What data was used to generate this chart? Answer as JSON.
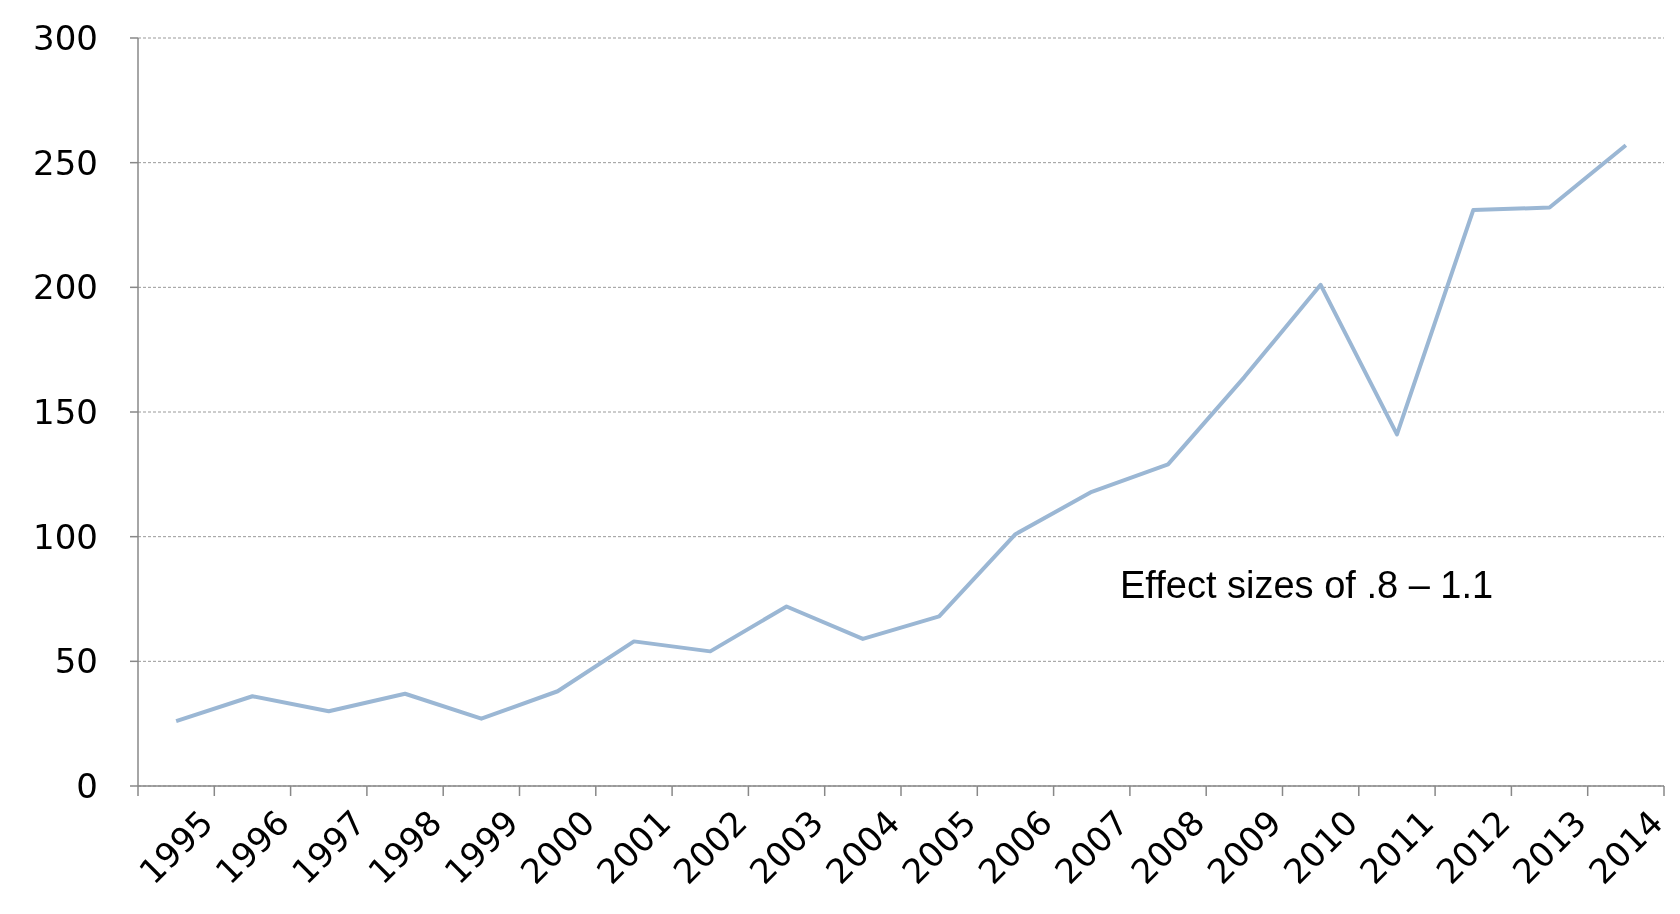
{
  "chart_data": {
    "type": "line",
    "categories": [
      "1995",
      "1996",
      "1997",
      "1998",
      "1999",
      "2000",
      "2001",
      "2002",
      "2003",
      "2004",
      "2005",
      "2006",
      "2007",
      "2008",
      "2009",
      "2010",
      "2011",
      "2012",
      "2013",
      "2014"
    ],
    "series": [
      {
        "color": "#9bb7d4",
        "values": [
          26,
          36,
          30,
          37,
          27,
          38,
          58,
          54,
          72,
          59,
          68,
          101,
          118,
          129,
          164,
          201,
          141,
          231,
          232,
          257
        ]
      }
    ],
    "ylim": [
      0,
      300
    ],
    "yticks": [
      0,
      50,
      100,
      150,
      200,
      250,
      300
    ],
    "grid": "y",
    "marker": "none",
    "line_style": "solid",
    "annotations": [
      "Effect sizes of .8 – 1.1"
    ]
  }
}
